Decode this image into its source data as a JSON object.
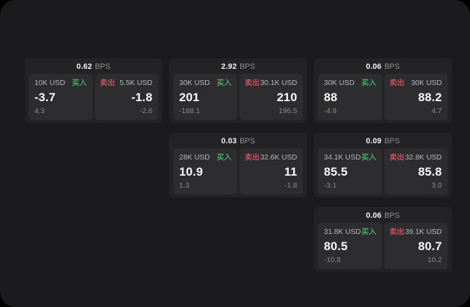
{
  "labels": {
    "bps_unit": "BPS",
    "buy": "买入",
    "sell": "卖出"
  },
  "colors": {
    "screen_bg": "#1b1b1d",
    "card_bg": "#232326",
    "tile_bg": "#2d2d30",
    "buy_green": "#43a964",
    "sell_red": "#c44f5e"
  },
  "cards": [
    {
      "bps": "0.62",
      "buy": {
        "amount": "10K USD",
        "price": "-3.7",
        "delta": "4.3"
      },
      "sell": {
        "amount": "5.5K USD",
        "price": "-1.8",
        "delta": "-2.6"
      }
    },
    {
      "bps": "2.92",
      "buy": {
        "amount": "30K USD",
        "price": "201",
        "delta": "-188.1"
      },
      "sell": {
        "amount": "30.1K USD",
        "price": "210",
        "delta": "196.5"
      }
    },
    {
      "bps": "0.06",
      "buy": {
        "amount": "30K USD",
        "price": "88",
        "delta": "-4.9"
      },
      "sell": {
        "amount": "30K USD",
        "price": "88.2",
        "delta": "4.7"
      }
    },
    {
      "bps": "0.03",
      "buy": {
        "amount": "28K USD",
        "price": "10.9",
        "delta": "1.3"
      },
      "sell": {
        "amount": "32.6K USD",
        "price": "11",
        "delta": "-1.8"
      }
    },
    {
      "bps": "0.09",
      "buy": {
        "amount": "34.1K USD",
        "price": "85.5",
        "delta": "-3.1"
      },
      "sell": {
        "amount": "32.8K USD",
        "price": "85.8",
        "delta": "3.0"
      }
    },
    {
      "bps": "0.06",
      "buy": {
        "amount": "31.8K USD",
        "price": "80.5",
        "delta": "-10.8"
      },
      "sell": {
        "amount": "39.1K USD",
        "price": "80.7",
        "delta": "10.2"
      }
    }
  ]
}
